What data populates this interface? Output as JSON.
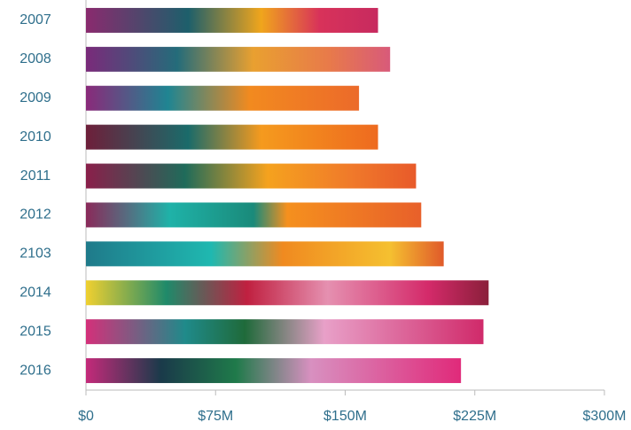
{
  "chart_data": {
    "type": "bar",
    "orientation": "horizontal",
    "categories": [
      "2007",
      "2008",
      "2009",
      "2010",
      "2011",
      "2012",
      "2103",
      "2014",
      "2015",
      "2016"
    ],
    "values": [
      169,
      176,
      158,
      169,
      191,
      194,
      207,
      233,
      230,
      217
    ],
    "xlim": [
      0,
      300
    ],
    "xticks": [
      {
        "value": 0,
        "label": "$0"
      },
      {
        "value": 75,
        "label": "$75M"
      },
      {
        "value": 150,
        "label": "$150M"
      },
      {
        "value": 225,
        "label": "$225M"
      },
      {
        "value": 300,
        "label": "$300M"
      }
    ]
  }
}
